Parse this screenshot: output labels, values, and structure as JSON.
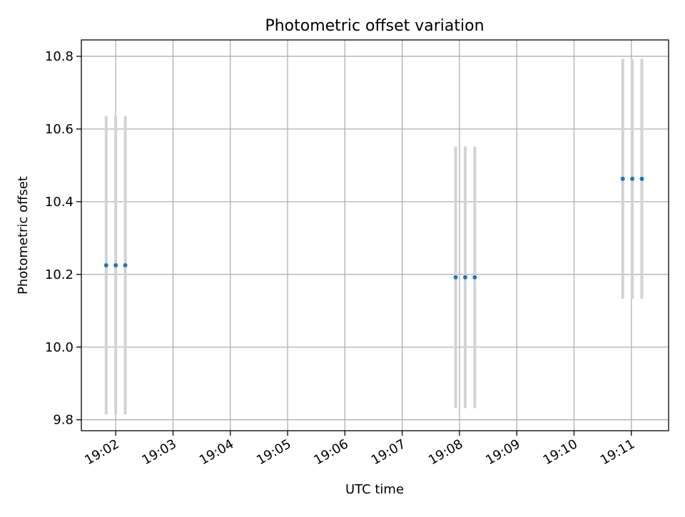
{
  "chart_data": {
    "type": "scatter",
    "title": "Photometric offset variation",
    "xlabel": "UTC time",
    "ylabel": "Photometric offset",
    "xlim": [
      "19:01:24",
      "19:11:39"
    ],
    "ylim": [
      9.77,
      10.845
    ],
    "xticks": [
      "19:02",
      "19:03",
      "19:04",
      "19:05",
      "19:06",
      "19:07",
      "19:08",
      "19:09",
      "19:10",
      "19:11"
    ],
    "yticks": [
      9.8,
      10.0,
      10.2,
      10.4,
      10.6,
      10.8
    ],
    "ytick_labels": [
      "9.8",
      "10.0",
      "10.2",
      "10.4",
      "10.6",
      "10.8"
    ],
    "grid": true,
    "colors": {
      "point": "#1f77b4",
      "errorbar": "#d3d3d3",
      "grid": "#b0b0b0",
      "axes": "#000000"
    },
    "points": [
      {
        "x": "19:01:50",
        "y": 10.225,
        "yerr": 0.41
      },
      {
        "x": "19:02:00",
        "y": 10.225,
        "yerr": 0.41
      },
      {
        "x": "19:02:10",
        "y": 10.225,
        "yerr": 0.41
      },
      {
        "x": "19:07:56",
        "y": 10.192,
        "yerr": 0.36
      },
      {
        "x": "19:08:06",
        "y": 10.192,
        "yerr": 0.36
      },
      {
        "x": "19:08:16",
        "y": 10.192,
        "yerr": 0.36
      },
      {
        "x": "19:10:51",
        "y": 10.463,
        "yerr": 0.33
      },
      {
        "x": "19:11:01",
        "y": 10.463,
        "yerr": 0.33
      },
      {
        "x": "19:11:11",
        "y": 10.463,
        "yerr": 0.33
      }
    ]
  }
}
